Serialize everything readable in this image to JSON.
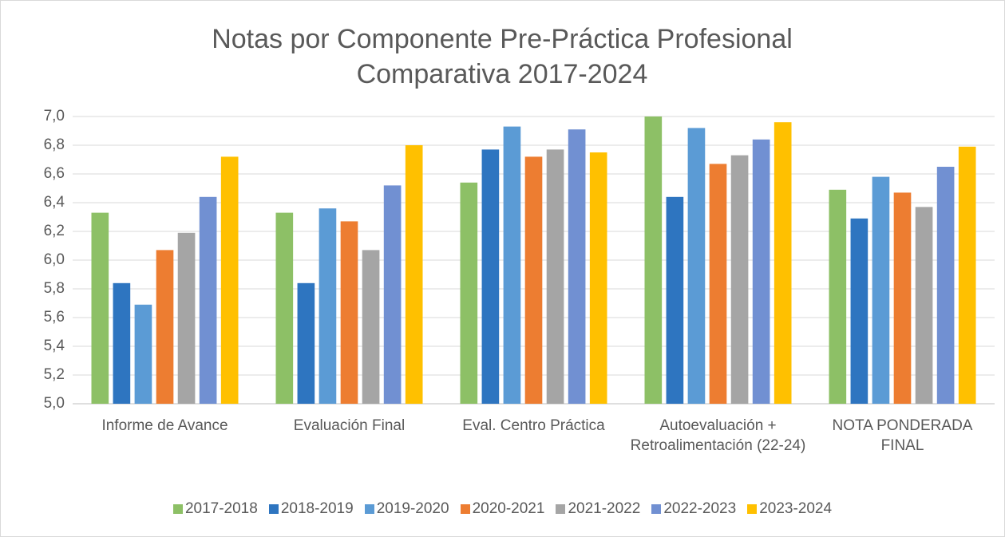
{
  "chart_data": {
    "type": "bar",
    "title": "Notas por Componente Pre-Práctica Profesional Comparativa 2017-2024",
    "categories": [
      "Informe de Avance",
      "Evaluación Final",
      "Eval. Centro Práctica",
      "Autoevaluación + Retroalimentación (22-24)",
      "NOTA PONDERADA FINAL"
    ],
    "series": [
      {
        "name": "2017-2018",
        "color": "#8dc066",
        "values": [
          6.33,
          6.33,
          6.54,
          7.0,
          6.49
        ]
      },
      {
        "name": "2018-2019",
        "color": "#2e75c0",
        "values": [
          5.84,
          5.84,
          6.77,
          6.44,
          6.29
        ]
      },
      {
        "name": "2019-2020",
        "color": "#5b9bd5",
        "values": [
          5.69,
          6.36,
          6.93,
          6.92,
          6.58
        ]
      },
      {
        "name": "2020-2021",
        "color": "#ed7d31",
        "values": [
          6.07,
          6.27,
          6.72,
          6.67,
          6.47
        ]
      },
      {
        "name": "2021-2022",
        "color": "#a5a5a5",
        "values": [
          6.19,
          6.07,
          6.77,
          6.73,
          6.37
        ]
      },
      {
        "name": "2022-2023",
        "color": "#7190d2",
        "values": [
          6.44,
          6.52,
          6.91,
          6.84,
          6.65
        ]
      },
      {
        "name": "2023-2024",
        "color": "#ffc000",
        "values": [
          6.72,
          6.8,
          6.75,
          6.96,
          6.79
        ]
      }
    ],
    "ylim": [
      5.0,
      7.0
    ],
    "yticks": [
      {
        "value": 5.0,
        "label": "5,0"
      },
      {
        "value": 5.2,
        "label": "5,2"
      },
      {
        "value": 5.4,
        "label": "5,4"
      },
      {
        "value": 5.6,
        "label": "5,6"
      },
      {
        "value": 5.8,
        "label": "5,8"
      },
      {
        "value": 6.0,
        "label": "6,0"
      },
      {
        "value": 6.2,
        "label": "6,2"
      },
      {
        "value": 6.4,
        "label": "6,4"
      },
      {
        "value": 6.6,
        "label": "6,6"
      },
      {
        "value": 6.8,
        "label": "6,8"
      },
      {
        "value": 7.0,
        "label": "7,0"
      }
    ],
    "grid": true,
    "legend": "bottom"
  }
}
